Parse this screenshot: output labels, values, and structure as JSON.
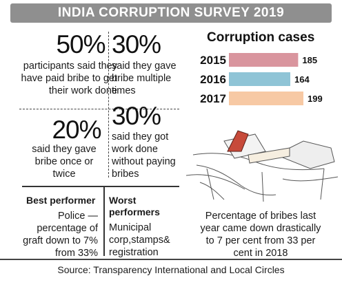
{
  "header": {
    "title": "INDIA CORRUPTION SURVEY 2019"
  },
  "stats": [
    {
      "value": "50%",
      "text": "participants said they have paid bribe to get their work done"
    },
    {
      "value": "30%",
      "text": "said they gave bribe multiple times"
    },
    {
      "value": "20%",
      "text": "said they gave bribe once or twice"
    },
    {
      "value": "30%",
      "text": "said they got work done without paying bribes"
    }
  ],
  "best": {
    "heading": "Best performer",
    "text": "Police — percentage of graft down to 7% from 33%"
  },
  "worst": {
    "heading": "Worst performers",
    "text": "Municipal corp,stamps& registration"
  },
  "note": "Percentage of bribes last year came down drastically to 7 per cent from 33 per cent in 2018",
  "source": "Source: Transparency International and Local Circles",
  "chart_data": {
    "type": "bar",
    "orientation": "horizontal",
    "title": "Corruption cases",
    "categories": [
      "2015",
      "2016",
      "2017"
    ],
    "values": [
      185,
      164,
      199
    ],
    "value_labels": [
      "185",
      "164",
      "199"
    ],
    "colors": [
      "#d9959e",
      "#8fc4d6",
      "#f7c9a4"
    ],
    "xlim": [
      0,
      199
    ]
  }
}
